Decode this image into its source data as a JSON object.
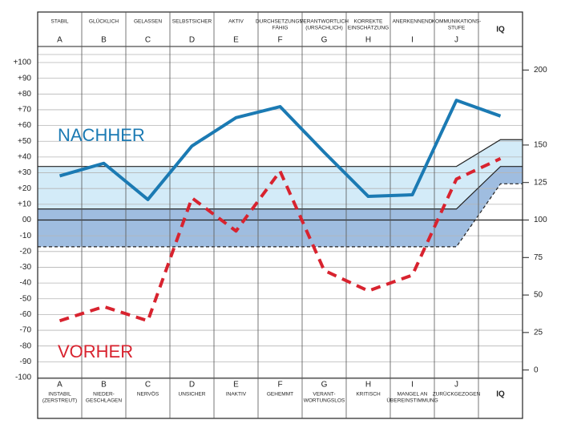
{
  "chart_data": {
    "type": "line",
    "categories": [
      "A",
      "B",
      "C",
      "D",
      "E",
      "F",
      "G",
      "H",
      "I",
      "J",
      "IQ"
    ],
    "top_labels": [
      [
        "STABIL"
      ],
      [
        "GLÜCKLICH"
      ],
      [
        "GELASSEN"
      ],
      [
        "SELBSTSICHER"
      ],
      [
        "AKTIV"
      ],
      [
        "DURCHSETZUNGS-",
        "FÄHIG"
      ],
      [
        "VERANTWORTLICH",
        "(URSÄCHLICH)"
      ],
      [
        "KORREKTE",
        "EINSCHÄTZUNG"
      ],
      [
        "ANERKENNEND"
      ],
      [
        "KOMMUNIKATIONS-",
        "STUFE"
      ],
      null
    ],
    "bottom_labels": [
      [
        "INSTABIL",
        "(ZERSTREUT)"
      ],
      [
        "NIEDER-",
        "GESCHLAGEN"
      ],
      [
        "NERVÖS"
      ],
      [
        "UNSICHER"
      ],
      [
        "INAKTIV"
      ],
      [
        "GEHEMMT"
      ],
      [
        "VERANT-",
        "WORTUNGSLOS"
      ],
      [
        "KRITISCH"
      ],
      [
        "MANGEL AN",
        "ÜBEREINSTIMMUNG"
      ],
      [
        "ZURÜCKGEZOGEN"
      ],
      null
    ],
    "series": [
      {
        "name": "NACHHER",
        "color": "#1b7ab3",
        "dashed": false,
        "values": [
          28,
          36,
          13,
          47,
          65,
          72,
          43,
          15,
          16,
          76,
          66
        ]
      },
      {
        "name": "VORHER",
        "color": "#d8232f",
        "dashed": true,
        "values": [
          -64,
          -55,
          -64,
          14,
          -7,
          31,
          -32,
          -45,
          -35,
          26,
          39
        ]
      }
    ],
    "bands": {
      "upper": [
        34,
        51
      ],
      "middle": [
        7,
        34
      ],
      "lower": [
        -17,
        23
      ]
    },
    "ylim": [
      -100,
      100
    ],
    "yticks": [
      {
        "value": 100,
        "label": "+100"
      },
      {
        "value": 90,
        "label": "+90"
      },
      {
        "value": 80,
        "label": "+80"
      },
      {
        "value": 70,
        "label": "+70"
      },
      {
        "value": 60,
        "label": "+60"
      },
      {
        "value": 50,
        "label": "+50"
      },
      {
        "value": 40,
        "label": "+40"
      },
      {
        "value": 30,
        "label": "+30"
      },
      {
        "value": 20,
        "label": "+20"
      },
      {
        "value": 10,
        "label": "+10"
      },
      {
        "value": 0,
        "label": "00"
      },
      -10,
      -20,
      -30,
      -40,
      -50,
      -60,
      -70,
      -80,
      -90,
      -100
    ],
    "y2lim": [
      -5,
      205
    ],
    "y2ticks": [
      0,
      25,
      50,
      75,
      100,
      125,
      150,
      200
    ],
    "grid": true
  }
}
